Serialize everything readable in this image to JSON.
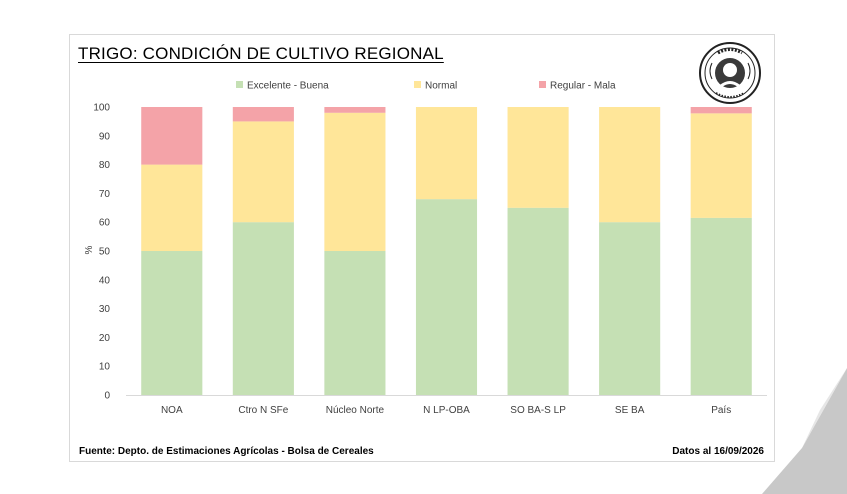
{
  "header": {
    "title": "TRIGO: CONDICIÓN DE CULTIVO REGIONAL"
  },
  "logo": {
    "name": "bolsa-de-cereales-seal",
    "text": "Bolsa de Cereales"
  },
  "footer": {
    "source": "Fuente: Depto. de Estimaciones Agrícolas - Bolsa de Cereales",
    "date": "Datos al 16/09/2026"
  },
  "chart_data": {
    "type": "bar",
    "stacked": true,
    "title": "TRIGO: CONDICIÓN DE CULTIVO REGIONAL",
    "xlabel": "",
    "ylabel": "%",
    "ylim": [
      0,
      100
    ],
    "yticks": [
      0,
      10,
      20,
      30,
      40,
      50,
      60,
      70,
      80,
      90,
      100
    ],
    "grid": false,
    "legend_position": "top",
    "categories": [
      "NOA",
      "Ctro N SFe",
      "Núcleo Norte",
      "N LP-OBA",
      "SO BA-S LP",
      "SE BA",
      "País"
    ],
    "series": [
      {
        "name": "Excelente - Buena",
        "color": "#c5e0b4",
        "values": [
          50,
          60,
          50,
          68,
          65,
          60,
          61.5
        ]
      },
      {
        "name": "Normal",
        "color": "#ffe699",
        "values": [
          30,
          35,
          48,
          32,
          35,
          40,
          36.3
        ]
      },
      {
        "name": "Regular - Mala",
        "color": "#f4a3a8",
        "values": [
          20,
          5,
          2,
          0,
          0,
          0,
          2.2
        ]
      }
    ],
    "column_background": "#f2f2f2"
  }
}
